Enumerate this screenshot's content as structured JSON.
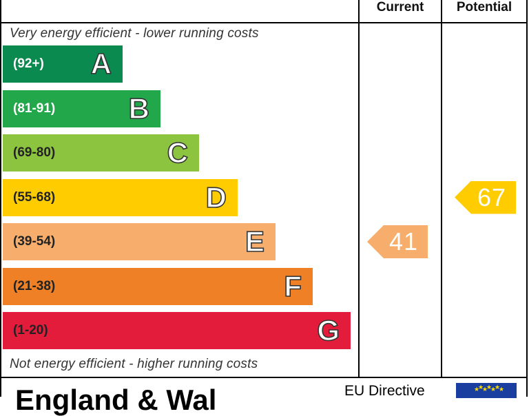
{
  "chart_data": {
    "type": "bar",
    "headers": {
      "current": "Current",
      "potential": "Potential"
    },
    "top_note": "Very energy efficient - lower running costs",
    "bottom_note": "Not energy efficient - higher running costs",
    "bands": [
      {
        "range": "(92+)",
        "letter": "A",
        "color": "#0b8a4f",
        "range_color": "#ffffff"
      },
      {
        "range": "(81-91)",
        "letter": "B",
        "color": "#22a84a",
        "range_color": "#ffffff"
      },
      {
        "range": "(69-80)",
        "letter": "C",
        "color": "#8cc43f",
        "range_color": "#222222"
      },
      {
        "range": "(55-68)",
        "letter": "D",
        "color": "#ffcc00",
        "range_color": "#222222"
      },
      {
        "range": "(39-54)",
        "letter": "E",
        "color": "#f7ae6c",
        "range_color": "#222222"
      },
      {
        "range": "(21-38)",
        "letter": "F",
        "color": "#ef8026",
        "range_color": "#222222"
      },
      {
        "range": "(1-20)",
        "letter": "G",
        "color": "#e31c3c",
        "range_color": "#222222"
      }
    ],
    "ratings": {
      "current": {
        "value": 41,
        "band": "E",
        "color": "#f7ae6c"
      },
      "potential": {
        "value": 67,
        "band": "D",
        "color": "#ffcc00"
      }
    }
  },
  "footer": {
    "title": "England & Wal",
    "directive": "EU Directive"
  }
}
